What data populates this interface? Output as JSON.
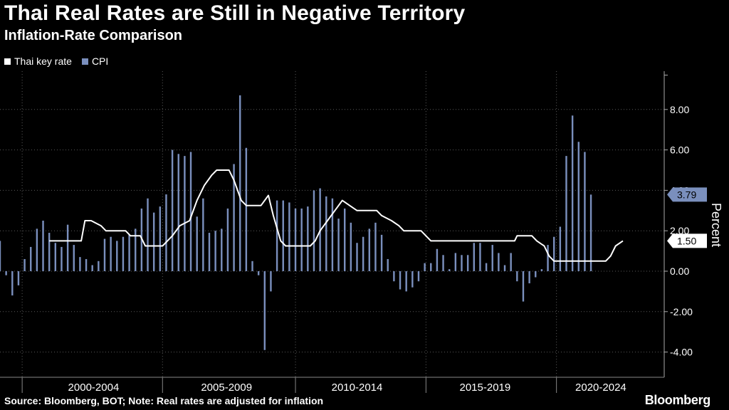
{
  "title": "Thai Real Rates are Still in Negative Territory",
  "subtitle": "Inflation-Rate Comparison",
  "legend": [
    {
      "label": "Thai key rate",
      "color": "#ffffff"
    },
    {
      "label": "CPI",
      "color": "#7a8fbd"
    }
  ],
  "source": "Source: Bloomberg, BOT; Note: Real rates are adjusted for inflation",
  "brand": "Bloomberg",
  "chart_data": {
    "type": "bar+line",
    "ylabel": "Percent",
    "ylim": [
      -5,
      10
    ],
    "yticks": [
      "8.00",
      "6.00",
      "4.00",
      "2.00",
      "0.00",
      "-2.00",
      "-4.00"
    ],
    "ytick_values": [
      8,
      6,
      4,
      2,
      0,
      -2,
      -4
    ],
    "xlim": [
      1998.0,
      2024.6
    ],
    "x_group_labels": [
      "2000-2004",
      "2005-2009",
      "2010-2014",
      "2015-2019",
      "2020-2024"
    ],
    "x_group_centers": [
      2001.8,
      2007.2,
      2012.5,
      2017.7,
      2022.4
    ],
    "x_boundaries": [
      1998.9,
      2004.6,
      2010.0,
      2015.3,
      2020.6
    ],
    "series": [
      {
        "name": "CPI",
        "kind": "bar",
        "color": "#7a8fbd",
        "start": 1998.0,
        "step": 0.25,
        "values": [
          1.5,
          -0.2,
          -1.2,
          -0.7,
          0.6,
          1.2,
          2.1,
          2.5,
          1.9,
          1.4,
          1.2,
          2.3,
          1.3,
          0.7,
          0.6,
          0.3,
          0.5,
          1.6,
          1.7,
          1.5,
          1.7,
          1.8,
          2.1,
          3.1,
          3.6,
          2.9,
          3.2,
          3.8,
          6.0,
          5.8,
          5.7,
          5.9,
          2.7,
          3.6,
          1.9,
          2.0,
          2.1,
          3.1,
          5.3,
          8.7,
          6.1,
          0.5,
          -0.2,
          -3.9,
          -1.0,
          3.5,
          3.5,
          3.4,
          3.1,
          3.1,
          3.2,
          4.0,
          4.1,
          3.7,
          3.6,
          2.6,
          3.1,
          2.4,
          1.4,
          1.7,
          2.1,
          2.4,
          1.8,
          0.6,
          -0.5,
          -0.9,
          -1.0,
          -0.8,
          -0.5,
          0.4,
          0.4,
          1.1,
          0.8,
          0.1,
          0.9,
          0.8,
          0.8,
          1.4,
          1.4,
          0.4,
          1.3,
          0.9,
          0.3,
          0.9,
          -0.5,
          -1.5,
          -0.6,
          -0.3,
          0.1,
          1.3,
          1.7,
          2.2,
          5.7,
          7.7,
          6.4,
          5.9,
          3.79
        ]
      },
      {
        "name": "Thai key rate",
        "kind": "step-line",
        "color": "#ffffff",
        "points": [
          [
            2000.0,
            1.5
          ],
          [
            2001.3,
            1.5
          ],
          [
            2001.45,
            2.5
          ],
          [
            2001.7,
            2.5
          ],
          [
            2002.1,
            2.25
          ],
          [
            2002.3,
            2.0
          ],
          [
            2003.1,
            2.0
          ],
          [
            2003.3,
            1.75
          ],
          [
            2003.7,
            1.75
          ],
          [
            2003.9,
            1.25
          ],
          [
            2004.6,
            1.25
          ],
          [
            2004.8,
            1.5
          ],
          [
            2005.0,
            1.75
          ],
          [
            2005.3,
            2.25
          ],
          [
            2005.7,
            2.5
          ],
          [
            2006.0,
            3.5
          ],
          [
            2006.3,
            4.25
          ],
          [
            2006.6,
            4.75
          ],
          [
            2006.8,
            5.0
          ],
          [
            2007.3,
            5.0
          ],
          [
            2007.5,
            4.5
          ],
          [
            2007.8,
            3.5
          ],
          [
            2008.0,
            3.25
          ],
          [
            2008.6,
            3.25
          ],
          [
            2008.9,
            3.75
          ],
          [
            2009.1,
            2.75
          ],
          [
            2009.4,
            1.5
          ],
          [
            2009.6,
            1.25
          ],
          [
            2010.6,
            1.25
          ],
          [
            2010.8,
            1.5
          ],
          [
            2011.0,
            2.0
          ],
          [
            2011.3,
            2.5
          ],
          [
            2011.6,
            3.0
          ],
          [
            2011.9,
            3.5
          ],
          [
            2012.2,
            3.25
          ],
          [
            2012.5,
            3.0
          ],
          [
            2013.3,
            3.0
          ],
          [
            2013.5,
            2.75
          ],
          [
            2013.9,
            2.5
          ],
          [
            2014.2,
            2.25
          ],
          [
            2014.4,
            2.0
          ],
          [
            2015.1,
            2.0
          ],
          [
            2015.3,
            1.75
          ],
          [
            2015.5,
            1.5
          ],
          [
            2018.9,
            1.5
          ],
          [
            2019.0,
            1.75
          ],
          [
            2019.6,
            1.75
          ],
          [
            2019.8,
            1.5
          ],
          [
            2020.1,
            1.25
          ],
          [
            2020.3,
            0.75
          ],
          [
            2020.5,
            0.5
          ],
          [
            2022.6,
            0.5
          ],
          [
            2022.8,
            0.75
          ],
          [
            2023.0,
            1.25
          ],
          [
            2023.3,
            1.5
          ]
        ]
      }
    ],
    "last_values": [
      {
        "series": "CPI",
        "value": 3.79,
        "label": "3.79"
      },
      {
        "series": "Thai key rate",
        "value": 1.5,
        "label": "1.50"
      }
    ]
  }
}
